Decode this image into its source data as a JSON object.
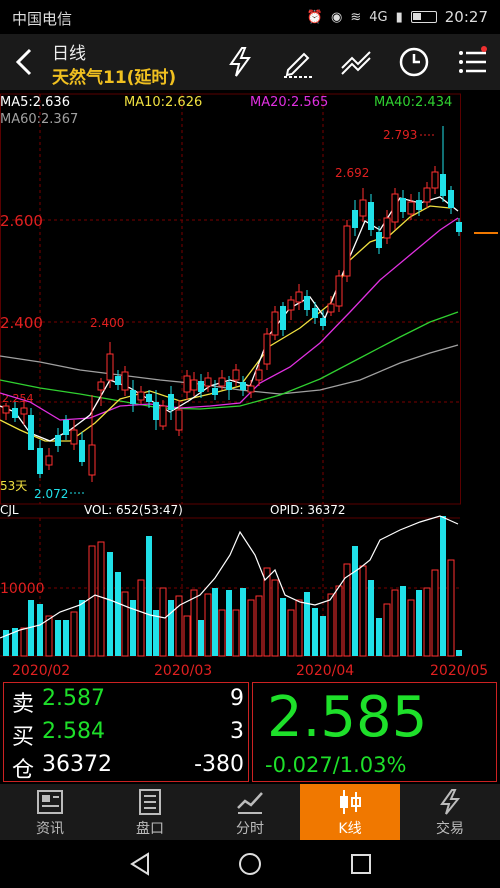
{
  "status_bar": {
    "carrier": "中国电信",
    "network": "4G",
    "time": "20:27"
  },
  "header": {
    "title": "日线",
    "subtitle": "天然气11(延时)"
  },
  "ma_legend": {
    "ma5": "MA5:2.636",
    "ma10": "MA10:2.626",
    "ma20": "MA20:2.565",
    "ma40": "MA40:2.434",
    "ma60": "MA60:2.367"
  },
  "price_axis": {
    "p1": "2.600",
    "p2": "2.400",
    "p3": "2.254"
  },
  "annotations": {
    "high": "2.793",
    "peak1": "2.692",
    "peak2": "2.400",
    "low": "2.072",
    "days": "53天"
  },
  "volume_legend": {
    "name": "CJL",
    "vol": "VOL: 652(53:47)",
    "opid": "OPID: 36372",
    "axis": "10000"
  },
  "dates": [
    "2020/02",
    "2020/03",
    "2020/04",
    "2020/05"
  ],
  "orderbook": {
    "sell_label": "卖",
    "sell_price": "2.587",
    "sell_qty": "9",
    "buy_label": "买",
    "buy_price": "2.584",
    "buy_qty": "3",
    "oi_label": "仓",
    "oi_value": "36372",
    "oi_change": "-380"
  },
  "last": {
    "price": "2.585",
    "change": "-0.027/1.03%"
  },
  "tabs": [
    "资讯",
    "盘口",
    "分时",
    "K线",
    "交易"
  ],
  "colors": {
    "up": "#ff3030",
    "down": "#20e0e8",
    "ma5": "#ffffff",
    "ma10": "#f0e040",
    "ma20": "#e030e0",
    "ma40": "#30d030",
    "ma60": "#a0a0a0",
    "accent": "#f07800"
  },
  "chart_data": {
    "type": "candlestick",
    "categories": [
      "2020/02",
      "2020/03",
      "2020/04",
      "2020/05"
    ],
    "price_labels": [
      2.6,
      2.4,
      2.254
    ],
    "high": 2.793,
    "low": 2.072
  }
}
